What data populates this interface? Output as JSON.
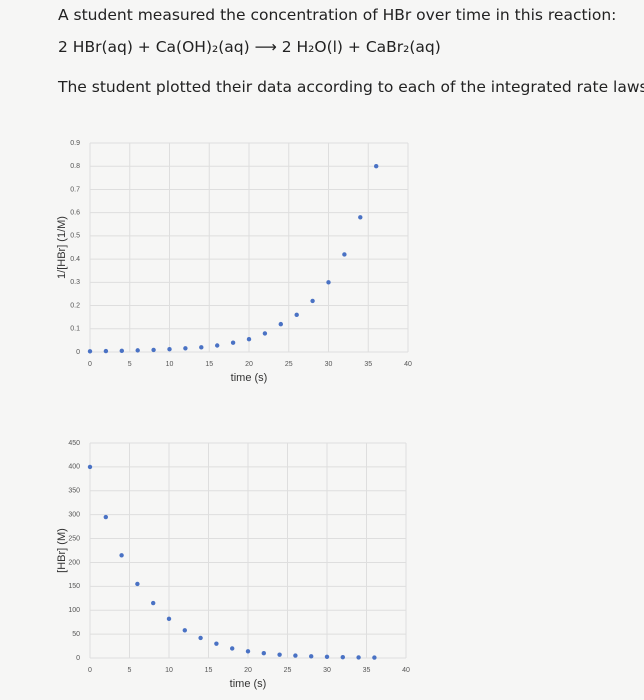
{
  "header": {
    "intro": "A student measured the concentration of HBr over time in this reaction:",
    "equation": "2 HBr(aq) + Ca(OH)₂(aq) ⟶ 2 H₂O(l) + CaBr₂(aq)",
    "note": "The student plotted their data according to each of the integrated rate laws."
  },
  "chart_data": [
    {
      "type": "scatter",
      "xlabel": "time (s)",
      "ylabel": "1/[HBr] (1/M)",
      "color": "#4a72c4",
      "grid": true,
      "x": [
        0,
        2,
        4,
        6,
        8,
        10,
        12,
        14,
        16,
        18,
        20,
        22,
        24,
        26,
        28,
        30,
        32,
        34,
        36
      ],
      "values": [
        0.003,
        0.004,
        0.005,
        0.007,
        0.009,
        0.012,
        0.016,
        0.02,
        0.028,
        0.04,
        0.055,
        0.08,
        0.12,
        0.16,
        0.22,
        0.3,
        0.42,
        0.58,
        0.8
      ],
      "xlim": [
        0,
        40
      ],
      "xticks": [
        0,
        5,
        10,
        15,
        20,
        25,
        30,
        35,
        40
      ],
      "ylim": [
        0,
        0.9
      ],
      "yticks": [
        0,
        0.1,
        0.2,
        0.3,
        0.4,
        0.5,
        0.6,
        0.7,
        0.8,
        0.9
      ]
    },
    {
      "type": "scatter",
      "xlabel": "time (s)",
      "ylabel": "[HBr] (M)",
      "color": "#4a72c4",
      "grid": true,
      "x": [
        0,
        2,
        4,
        6,
        8,
        10,
        12,
        14,
        16,
        18,
        20,
        22,
        24,
        26,
        28,
        30,
        32,
        34,
        36
      ],
      "values": [
        400,
        295,
        215,
        155,
        115,
        82,
        58,
        42,
        30,
        20,
        14,
        10,
        7,
        5,
        3.5,
        2.5,
        1.8,
        1.2,
        0.9
      ],
      "xlim": [
        0,
        40
      ],
      "xticks": [
        0,
        5,
        10,
        15,
        20,
        25,
        30,
        35,
        40
      ],
      "ylim": [
        0,
        450
      ],
      "yticks": [
        0,
        50,
        100,
        150,
        200,
        250,
        300,
        350,
        400,
        450
      ]
    }
  ]
}
